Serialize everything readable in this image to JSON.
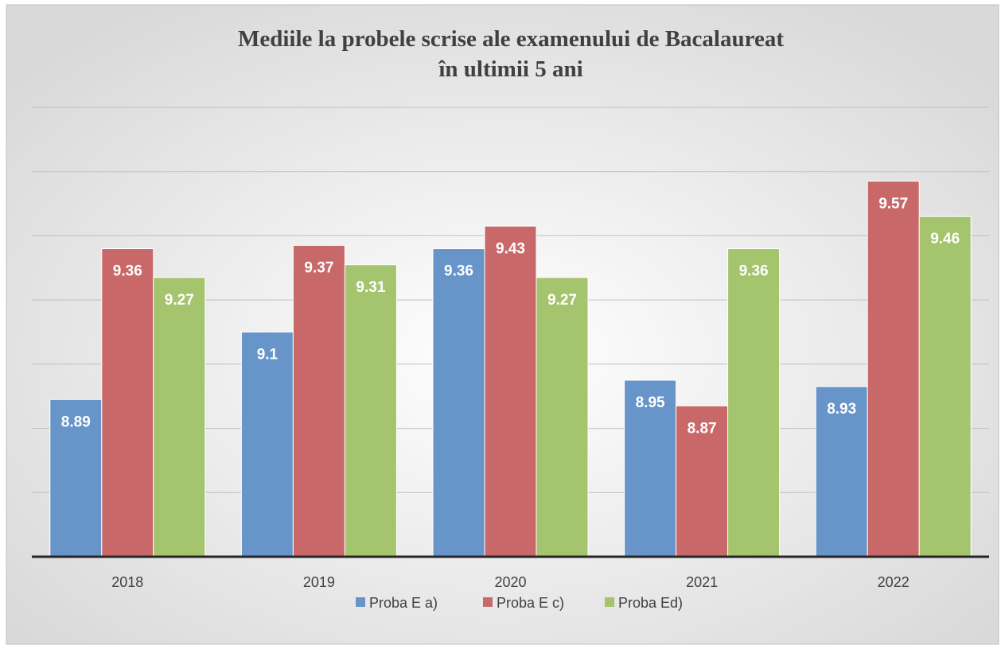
{
  "chart_data": {
    "type": "bar",
    "title": [
      "Mediile la  probele scrise ale examenului de Bacalaureat",
      "în ultimii 5 ani"
    ],
    "categories": [
      "2018",
      "2019",
      "2020",
      "2021",
      "2022"
    ],
    "series": [
      {
        "name": "Proba E a)",
        "color": "#6794c9",
        "values": [
          8.89,
          9.1,
          9.36,
          8.95,
          8.93
        ]
      },
      {
        "name": "Proba E c)",
        "color": "#c96868",
        "values": [
          9.36,
          9.37,
          9.43,
          8.87,
          9.57
        ]
      },
      {
        "name": "Proba Ed)",
        "color": "#a5c46e",
        "values": [
          9.27,
          9.31,
          9.27,
          9.36,
          9.46
        ]
      }
    ],
    "ylim": [
      8.4,
      9.8
    ],
    "yticks": [
      8.6,
      8.8,
      9.0,
      9.2,
      9.4,
      9.6,
      9.8
    ],
    "grid": true,
    "legend": "bottom"
  }
}
